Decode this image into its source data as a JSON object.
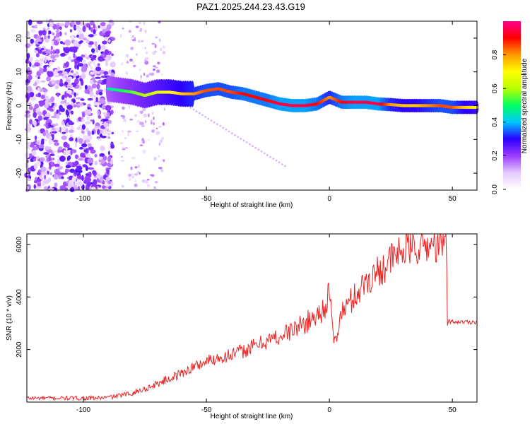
{
  "title": "PAZ1.2025.244.23.43.G19",
  "chart_data": [
    {
      "type": "heatmap",
      "name": "spectrogram",
      "xlabel": "Height of straight line (km)",
      "ylabel": "Frequency (Hz)",
      "xlim": [
        -123,
        60
      ],
      "ylim": [
        -25,
        25
      ],
      "xticks": [
        -100,
        -50,
        0,
        50
      ],
      "yticks": [
        20,
        10,
        0,
        -10,
        -20
      ],
      "colorbar": {
        "label": "Normalized spectral amplitude",
        "range": [
          0,
          1
        ],
        "ticks": [
          "0.0",
          "0.2",
          "0.4",
          "0.6",
          "0.8"
        ],
        "tick_values": [
          0.0,
          0.2,
          0.4,
          0.6,
          0.8
        ],
        "colors": [
          "#ffffff",
          "#e4c8ff",
          "#9a3cff",
          "#2a00ff",
          "#00c8ff",
          "#00ff60",
          "#b8ff00",
          "#ffff00",
          "#ff9900",
          "#ff0000",
          "#ff0090"
        ]
      },
      "ridge": {
        "x": [
          -90,
          -85,
          -80,
          -75,
          -70,
          -65,
          -60,
          -55,
          -50,
          -45,
          -40,
          -35,
          -30,
          -25,
          -20,
          -15,
          -10,
          -5,
          0,
          5,
          10,
          15,
          20,
          25,
          30,
          35,
          40,
          45,
          50,
          55,
          60
        ],
        "y": [
          5,
          4.5,
          4,
          3,
          4,
          4,
          3.5,
          3.5,
          4.5,
          5,
          4,
          3.5,
          2.5,
          1.5,
          0.5,
          0,
          0,
          0.5,
          2.5,
          1,
          1,
          1,
          0.5,
          0.3,
          0,
          0,
          0,
          0,
          -0.5,
          -0.5,
          -0.5
        ],
        "amplitude": [
          0.45,
          0.5,
          0.55,
          0.6,
          0.65,
          0.7,
          0.75,
          0.8,
          0.85,
          0.85,
          0.85,
          0.9,
          0.9,
          0.9,
          0.95,
          0.95,
          0.95,
          0.9,
          0.8,
          0.9,
          0.95,
          0.95,
          0.95,
          0.8,
          0.75,
          0.75,
          0.8,
          0.85,
          0.85,
          0.75,
          0.7
        ]
      }
    },
    {
      "type": "line",
      "name": "snr",
      "xlabel": "Height of straight line (km)",
      "ylabel": "SNR (10 * v/v)",
      "xlim": [
        -123,
        60
      ],
      "ylim": [
        0,
        6400
      ],
      "xticks": [
        -100,
        -50,
        0,
        50
      ],
      "yticks": [
        2000,
        4000,
        6000
      ],
      "color": "#ee2222",
      "series": [
        {
          "name": "SNR",
          "x": [
            -123,
            -110,
            -100,
            -95,
            -90,
            -85,
            -80,
            -75,
            -70,
            -65,
            -60,
            -55,
            -50,
            -45,
            -40,
            -35,
            -30,
            -25,
            -20,
            -15,
            -10,
            -5,
            -2,
            0,
            1,
            2,
            5,
            10,
            15,
            20,
            25,
            30,
            35,
            40,
            45,
            47.5,
            48,
            50,
            55,
            60
          ],
          "y": [
            150,
            150,
            150,
            150,
            180,
            250,
            350,
            500,
            700,
            900,
            1100,
            1350,
            1550,
            1700,
            1800,
            1950,
            2150,
            2350,
            2500,
            2750,
            3000,
            3300,
            3600,
            4200,
            3000,
            2200,
            3400,
            4000,
            4600,
            5000,
            5400,
            5800,
            5900,
            5950,
            6000,
            6000,
            3100,
            3050,
            3050,
            3050
          ]
        }
      ]
    }
  ]
}
